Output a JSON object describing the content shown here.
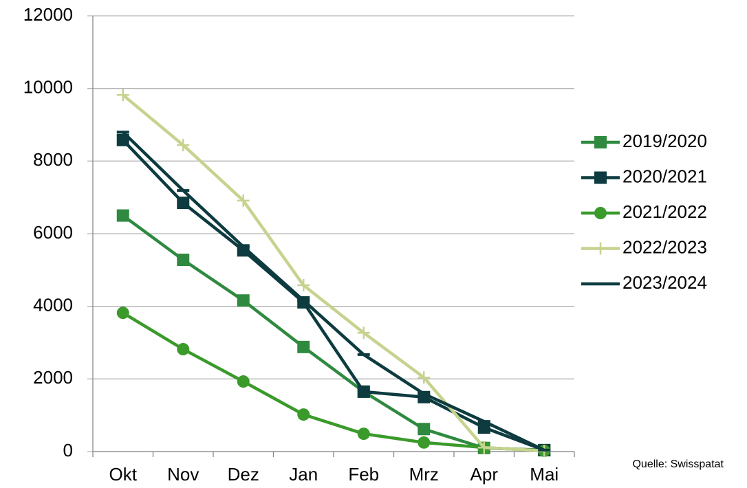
{
  "chart_data": {
    "type": "line",
    "categories": [
      "Okt",
      "Nov",
      "Dez",
      "Jan",
      "Feb",
      "Mrz",
      "Apr",
      "Mai"
    ],
    "series": [
      {
        "name": "2019/2020",
        "color": "#2f8a40",
        "marker": "square",
        "values": [
          6500,
          5280,
          4160,
          2880,
          1650,
          620,
          100,
          40
        ]
      },
      {
        "name": "2020/2021",
        "color": "#0d3b3f",
        "marker": "square",
        "values": [
          8580,
          6850,
          5540,
          4110,
          1650,
          1500,
          660,
          40
        ]
      },
      {
        "name": "2021/2022",
        "color": "#3a9a2a",
        "marker": "circle",
        "values": [
          3820,
          2820,
          1930,
          1020,
          490,
          250,
          110,
          20
        ]
      },
      {
        "name": "2022/2023",
        "color": "#c6d38f",
        "marker": "plus",
        "values": [
          9820,
          8440,
          6910,
          4580,
          3270,
          2040,
          110,
          20
        ]
      },
      {
        "name": "2023/2024",
        "color": "#0d3b3f",
        "marker": "dash",
        "values": [
          8800,
          7190,
          5640,
          4160,
          2670,
          1590,
          830,
          40
        ]
      }
    ],
    "ylim": [
      0,
      12000
    ],
    "yticks": [
      0,
      2000,
      4000,
      6000,
      8000,
      10000,
      12000
    ],
    "grid": true,
    "legend": "right",
    "source": "Quelle: Swisspatat"
  }
}
